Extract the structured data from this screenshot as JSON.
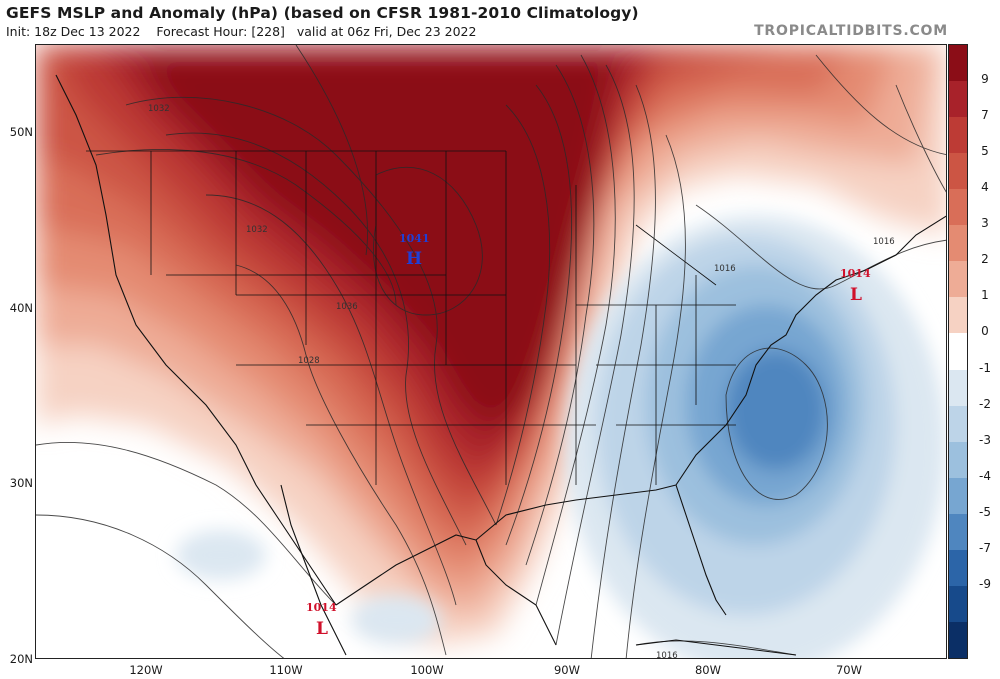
{
  "header": {
    "title": "GEFS MSLP and Anomaly (hPa) (based on CFSR 1981-2010 Climatology)",
    "init": "Init: 18z Dec 13 2022",
    "forecast_hour": "Forecast Hour: [228]",
    "valid": "valid at 06z Fri, Dec 23 2022",
    "brand": "TROPICALTIDBITS.COM"
  },
  "axes": {
    "lat_labels": [
      "50N",
      "40N",
      "30N",
      "20N"
    ],
    "lon_labels": [
      "120W",
      "110W",
      "100W",
      "90W",
      "80W",
      "70W"
    ]
  },
  "colorbar": {
    "labels": [
      "9",
      "7",
      "5",
      "4",
      "3",
      "2",
      "1",
      "0",
      "-1",
      "-2",
      "-3",
      "-4",
      "-5",
      "-7",
      "-9"
    ],
    "colors": [
      "#8b0d17",
      "#a8222a",
      "#bd3b35",
      "#cc5544",
      "#d96e58",
      "#e48b72",
      "#eeac96",
      "#f6d2c3",
      "#ffffff",
      "#dbe7f1",
      "#bdd4e8",
      "#9cc0de",
      "#77a6d1",
      "#4f86bf",
      "#2c65a8",
      "#174a8b",
      "#0b2f66"
    ]
  },
  "pressure_systems": [
    {
      "type": "H",
      "value": "1041",
      "color": "#1f3fd6"
    },
    {
      "type": "L",
      "value": "1014",
      "color": "#d0102a"
    },
    {
      "type": "L",
      "value": "1014",
      "color": "#d0102a"
    }
  ],
  "isobar_labels": [
    "1032",
    "1032",
    "1036",
    "1028",
    "1016",
    "1016",
    "1016"
  ]
}
